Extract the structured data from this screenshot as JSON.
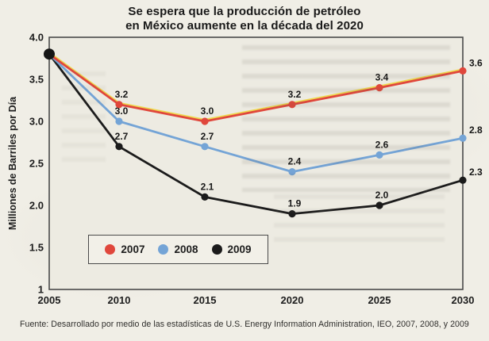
{
  "chart_data": {
    "type": "line",
    "title": "Se espera que la producción de petróleo en México aumente en la década del 2020",
    "title_lines": {
      "line1": "Se espera que la producción de petróleo",
      "line2": "en México aumente en la década del 2020"
    },
    "ylabel": "Milliones de Barriles por Día",
    "xlabel": "",
    "x": [
      2005,
      2010,
      2015,
      2020,
      2025,
      2030
    ],
    "ylim": [
      1,
      4
    ],
    "ytick_labels": [
      "4.0",
      "3.5",
      "3.0",
      "2.5",
      "2.0",
      "1.5",
      "1"
    ],
    "ytick_values": [
      4.0,
      3.5,
      3.0,
      2.5,
      2.0,
      1.5,
      1.0
    ],
    "grid": false,
    "legend_position": "inside-bottom-left",
    "series": [
      {
        "name": "2007",
        "color": "#e0473c",
        "edge_color": "#eed84e",
        "values": [
          3.8,
          3.2,
          3.0,
          3.2,
          3.4,
          3.6
        ]
      },
      {
        "name": "2008",
        "color": "#74a4d6",
        "edge_color": null,
        "values": [
          3.8,
          3.0,
          2.7,
          2.4,
          2.6,
          2.8
        ]
      },
      {
        "name": "2009",
        "color": "#1b1b1b",
        "edge_color": null,
        "values": [
          3.8,
          2.7,
          2.1,
          1.9,
          2.0,
          2.3
        ]
      }
    ],
    "point_labels_note": "all points labeled except shared 2005 start point (3.8)",
    "source": "Fuente: Desarrollado por medio de las estadísticas de U.S. Energy Information Administration, IEO, 2007, 2008, y 2009"
  }
}
